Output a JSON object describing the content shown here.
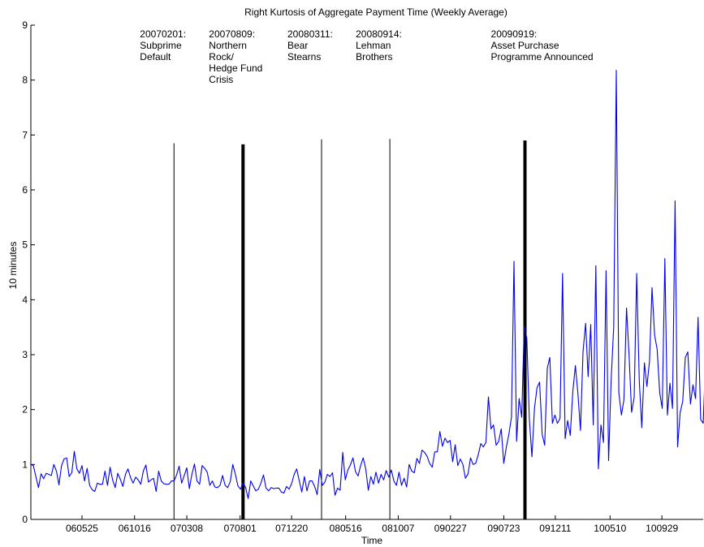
{
  "chart_data": {
    "type": "line",
    "title": "Right Kurtosis of Aggregate Payment Time (Weekly Average)",
    "xlabel": "Time",
    "ylabel": "10 minutes",
    "ylim": [
      0,
      9
    ],
    "yticks": [
      0,
      1,
      2,
      3,
      4,
      5,
      6,
      7,
      8,
      9
    ],
    "xlim": [
      "2006-01-05",
      "2011-01-20"
    ],
    "xticks": [
      {
        "date": "2006-05-25",
        "label": "060525"
      },
      {
        "date": "2006-10-16",
        "label": "061016"
      },
      {
        "date": "2007-03-08",
        "label": "070308"
      },
      {
        "date": "2007-08-01",
        "label": "070801"
      },
      {
        "date": "2007-12-20",
        "label": "071220"
      },
      {
        "date": "2008-05-16",
        "label": "080516"
      },
      {
        "date": "2008-10-07",
        "label": "081007"
      },
      {
        "date": "2009-02-27",
        "label": "090227"
      },
      {
        "date": "2009-07-23",
        "label": "090723"
      },
      {
        "date": "2009-12-11",
        "label": "091211"
      },
      {
        "date": "2010-05-10",
        "label": "100510"
      },
      {
        "date": "2010-09-29",
        "label": "100929"
      }
    ],
    "line_color": "#0000ee",
    "events": [
      {
        "date": "2007-02-01",
        "height": 6.85,
        "weight": "thin",
        "lines": [
          "20070201:",
          "Subprime",
          "Default"
        ]
      },
      {
        "date": "2007-08-09",
        "height": 6.83,
        "weight": "thick",
        "lines": [
          "20070809:",
          "Northern",
          "Rock/",
          "Hedge Fund",
          "Crisis"
        ]
      },
      {
        "date": "2008-03-11",
        "height": 6.92,
        "weight": "thin",
        "lines": [
          "20080311:",
          "Bear",
          "Stearns"
        ]
      },
      {
        "date": "2008-09-14",
        "height": 6.93,
        "weight": "thin",
        "lines": [
          "20080914:",
          "Lehman",
          "Brothers"
        ]
      },
      {
        "date": "2009-09-19",
        "height": 6.9,
        "weight": "thick",
        "lines": [
          "20090919:",
          "Asset Purchase",
          "Programme Announced"
        ]
      }
    ],
    "series": [
      {
        "start": "2006-01-05",
        "step_days": 7,
        "values": [
          1.0,
          0.98,
          0.77,
          0.58,
          0.83,
          0.74,
          0.84,
          0.82,
          0.8,
          1.0,
          0.88,
          0.63,
          0.98,
          1.1,
          1.12,
          0.78,
          0.85,
          1.24,
          0.92,
          0.84,
          0.98,
          0.7,
          0.93,
          0.62,
          0.54,
          0.51,
          0.66,
          0.64,
          0.64,
          0.88,
          0.62,
          0.95,
          0.72,
          0.58,
          0.84,
          0.73,
          0.6,
          0.82,
          0.92,
          0.76,
          0.66,
          0.77,
          0.72,
          0.64,
          0.88,
          0.99,
          0.68,
          0.72,
          0.75,
          0.51,
          0.88,
          0.7,
          0.65,
          0.64,
          0.64,
          0.7,
          0.7,
          0.81,
          0.97,
          0.66,
          0.8,
          0.94,
          0.56,
          0.82,
          1.01,
          0.7,
          0.64,
          0.98,
          0.93,
          0.86,
          0.62,
          0.7,
          0.59,
          0.58,
          0.62,
          0.8,
          0.62,
          0.58,
          0.69,
          1.0,
          0.82,
          0.61,
          0.55,
          0.67,
          0.58,
          0.38,
          0.7,
          0.61,
          0.52,
          0.55,
          0.66,
          0.81,
          0.57,
          0.52,
          0.58,
          0.56,
          0.57,
          0.57,
          0.5,
          0.48,
          0.6,
          0.55,
          0.65,
          0.82,
          0.92,
          0.7,
          0.5,
          0.78,
          0.52,
          0.7,
          0.7,
          0.6,
          0.45,
          0.91,
          0.62,
          0.68,
          0.82,
          0.78,
          0.85,
          0.44,
          0.57,
          0.53,
          1.22,
          0.72,
          0.9,
          0.99,
          1.12,
          0.87,
          0.79,
          0.98,
          1.12,
          0.92,
          0.53,
          0.78,
          0.64,
          0.86,
          0.66,
          0.82,
          0.72,
          0.89,
          0.77,
          0.9,
          0.7,
          0.62,
          0.86,
          0.62,
          0.75,
          0.59,
          1.0,
          0.88,
          0.85,
          1.11,
          1.02,
          1.26,
          1.22,
          1.15,
          1.02,
          0.95,
          1.23,
          1.23,
          1.6,
          1.33,
          1.48,
          1.4,
          1.44,
          1.05,
          1.36,
          0.98,
          1.1,
          1.0,
          0.75,
          0.83,
          1.12,
          1.0,
          1.02,
          1.18,
          1.38,
          1.32,
          1.4,
          2.23,
          1.65,
          1.72,
          1.35,
          1.42,
          1.65,
          1.02,
          1.32,
          1.55,
          1.86,
          4.7,
          1.42,
          2.2,
          1.86,
          3.52,
          3.3,
          1.83,
          1.14,
          2.02,
          2.4,
          2.5,
          1.55,
          1.35,
          2.75,
          2.95,
          1.75,
          1.9,
          1.75,
          1.84,
          4.48,
          1.47,
          1.8,
          1.53,
          2.32,
          2.8,
          2.3,
          1.62,
          3.05,
          3.57,
          2.6,
          3.55,
          1.72,
          4.62,
          0.92,
          1.72,
          1.4,
          4.53,
          1.07,
          2.56,
          3.5,
          8.18,
          2.31,
          1.9,
          2.18,
          3.85,
          3.0,
          1.95,
          2.22,
          4.48,
          2.52,
          1.67,
          2.85,
          2.42,
          2.88,
          4.22,
          3.35,
          3.1,
          2.3,
          2.02,
          4.75,
          1.9,
          2.48,
          2.02,
          5.8,
          1.32,
          1.95,
          2.15,
          2.95,
          3.05,
          2.1,
          2.45,
          2.2,
          3.68,
          1.82,
          1.75,
          2.95
        ]
      }
    ]
  }
}
